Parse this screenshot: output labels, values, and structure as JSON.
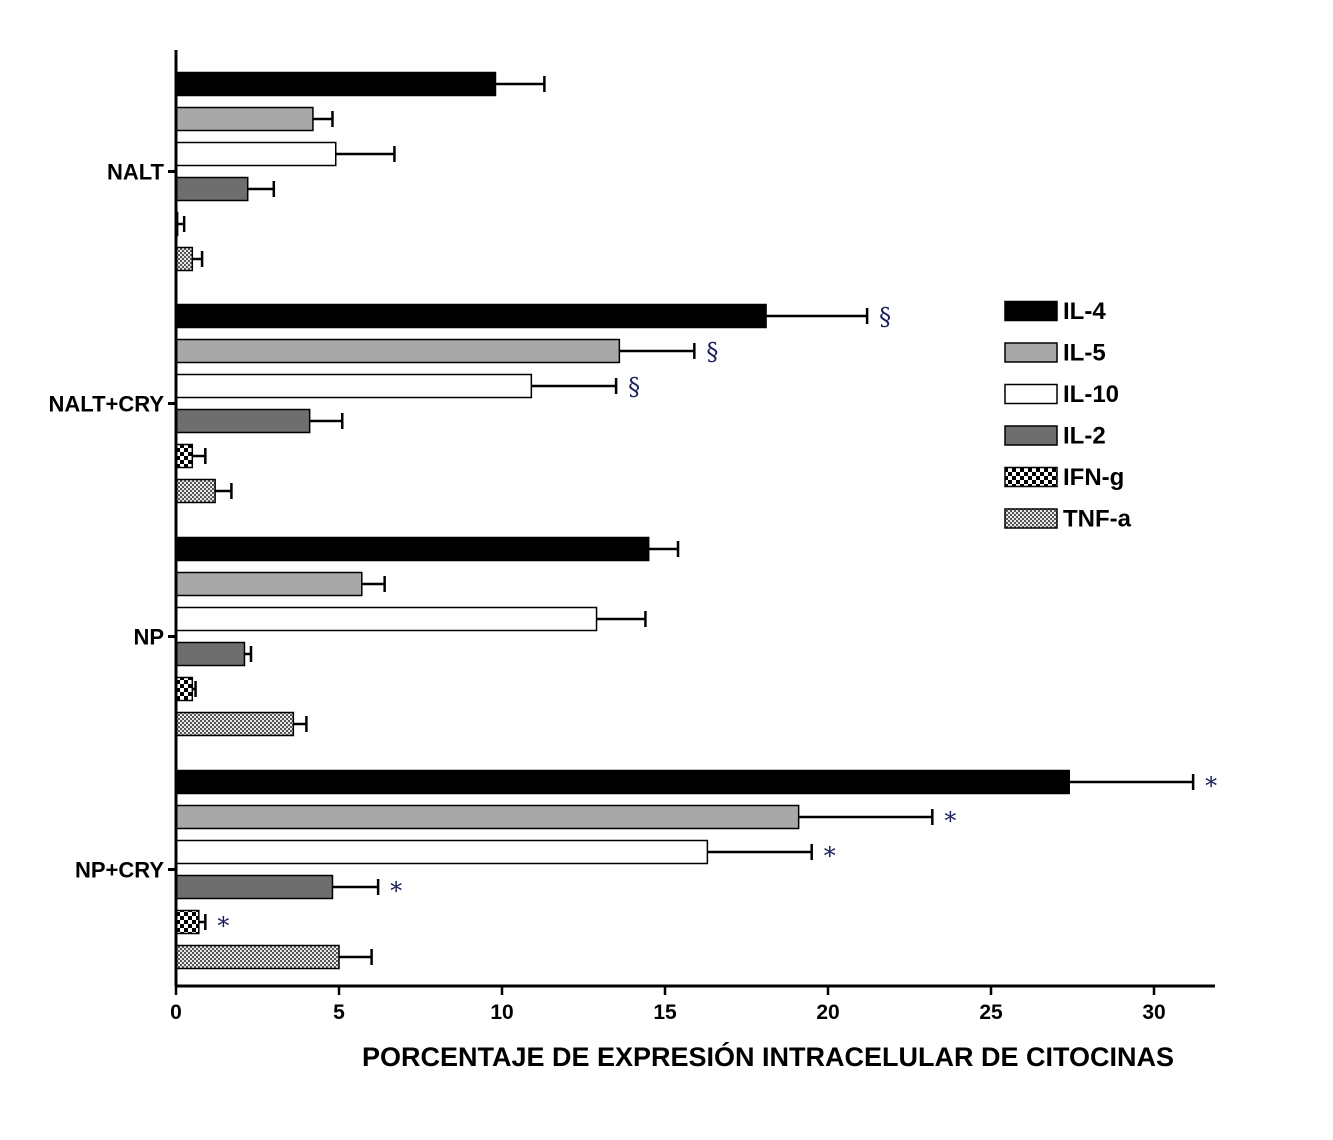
{
  "chart_data": {
    "type": "bar",
    "orientation": "horizontal",
    "categories": [
      "NALT",
      "NALT+CRY",
      "NP",
      "NP+CRY"
    ],
    "xlabel": "PORCENTAJE DE EXPRESIÓN INTRACELULAR DE CITOCINAS",
    "ylabel": "",
    "xlim": [
      0,
      32
    ],
    "xticks": [
      0,
      5,
      10,
      15,
      20,
      25,
      30
    ],
    "grid": false,
    "legend_position": "right",
    "series": [
      {
        "name": "IL-4",
        "color": "#000000",
        "pattern": "solid",
        "values": [
          9.8,
          18.1,
          14.5,
          27.4
        ],
        "errors": [
          1.5,
          3.1,
          0.9,
          3.8
        ],
        "annotations": [
          "",
          "§",
          "",
          "*"
        ]
      },
      {
        "name": "IL-5",
        "color": "#a8a8a8",
        "pattern": "solid",
        "values": [
          4.2,
          13.6,
          5.7,
          19.1
        ],
        "errors": [
          0.6,
          2.3,
          0.7,
          4.1
        ],
        "annotations": [
          "",
          "§",
          "",
          "*"
        ]
      },
      {
        "name": "IL-10",
        "color": "#ffffff",
        "pattern": "solid",
        "values": [
          4.9,
          10.9,
          12.9,
          16.3
        ],
        "errors": [
          1.8,
          2.6,
          1.5,
          3.2
        ],
        "annotations": [
          "",
          "§",
          "",
          "*"
        ]
      },
      {
        "name": "IL-2",
        "color": "#6e6e6e",
        "pattern": "solid",
        "values": [
          2.2,
          4.1,
          2.1,
          4.8
        ],
        "errors": [
          0.8,
          1.0,
          0.2,
          1.4
        ],
        "annotations": [
          "",
          "",
          "",
          "*"
        ]
      },
      {
        "name": "IFN-g",
        "color": "#000000",
        "pattern": "checker",
        "values": [
          0.05,
          0.5,
          0.5,
          0.7
        ],
        "errors": [
          0.2,
          0.4,
          0.1,
          0.2
        ],
        "annotations": [
          "",
          "",
          "",
          "*"
        ]
      },
      {
        "name": "TNF-a",
        "color": "#7a7a7a",
        "pattern": "fine-checker",
        "values": [
          0.5,
          1.2,
          3.6,
          5.0
        ],
        "errors": [
          0.3,
          0.5,
          0.4,
          1.0
        ],
        "annotations": [
          "",
          "",
          "",
          ""
        ]
      }
    ]
  }
}
